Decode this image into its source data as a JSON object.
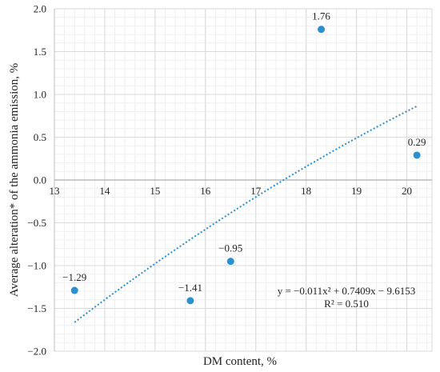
{
  "chart_data": {
    "type": "scatter",
    "xlabel": "DM content, %",
    "ylabel": "Average alteration* of the ammonia emission, %",
    "xlim": [
      13,
      20.5
    ],
    "ylim": [
      -2.0,
      2.0
    ],
    "x_ticks": [
      "13",
      "14",
      "15",
      "16",
      "17",
      "18",
      "19",
      "20"
    ],
    "y_ticks": [
      "2.0",
      "1.5",
      "1.0",
      "0.5",
      "0.0",
      "−0.5",
      "−1.0",
      "−1.5",
      "−2.0"
    ],
    "y_tick_values": [
      2.0,
      1.5,
      1.0,
      0.5,
      0.0,
      -0.5,
      -1.0,
      -1.5,
      -2.0
    ],
    "x_tick_values": [
      13,
      14,
      15,
      16,
      17,
      18,
      19,
      20
    ],
    "points": [
      {
        "x": 13.4,
        "y": -1.29,
        "label": "−1.29"
      },
      {
        "x": 15.7,
        "y": -1.41,
        "label": "−1.41"
      },
      {
        "x": 16.5,
        "y": -0.95,
        "label": "−0.95"
      },
      {
        "x": 18.3,
        "y": 1.76,
        "label": "1.76"
      },
      {
        "x": 20.2,
        "y": 0.29,
        "label": "0.29"
      }
    ],
    "trendline": {
      "type": "polynomial",
      "coefficients": [
        -0.011,
        0.7409,
        -9.6153
      ],
      "x_range": [
        13.4,
        20.2
      ],
      "style": "dotted"
    },
    "equation": "y = −0.011x² + 0.7409x − 9.6153",
    "r_squared": "R² = 0.510",
    "grid": true,
    "colors": {
      "points": "#2a90cf",
      "trend": "#2a90cf",
      "grid_major": "#d9d9d9",
      "grid_minor": "#efefef"
    }
  }
}
